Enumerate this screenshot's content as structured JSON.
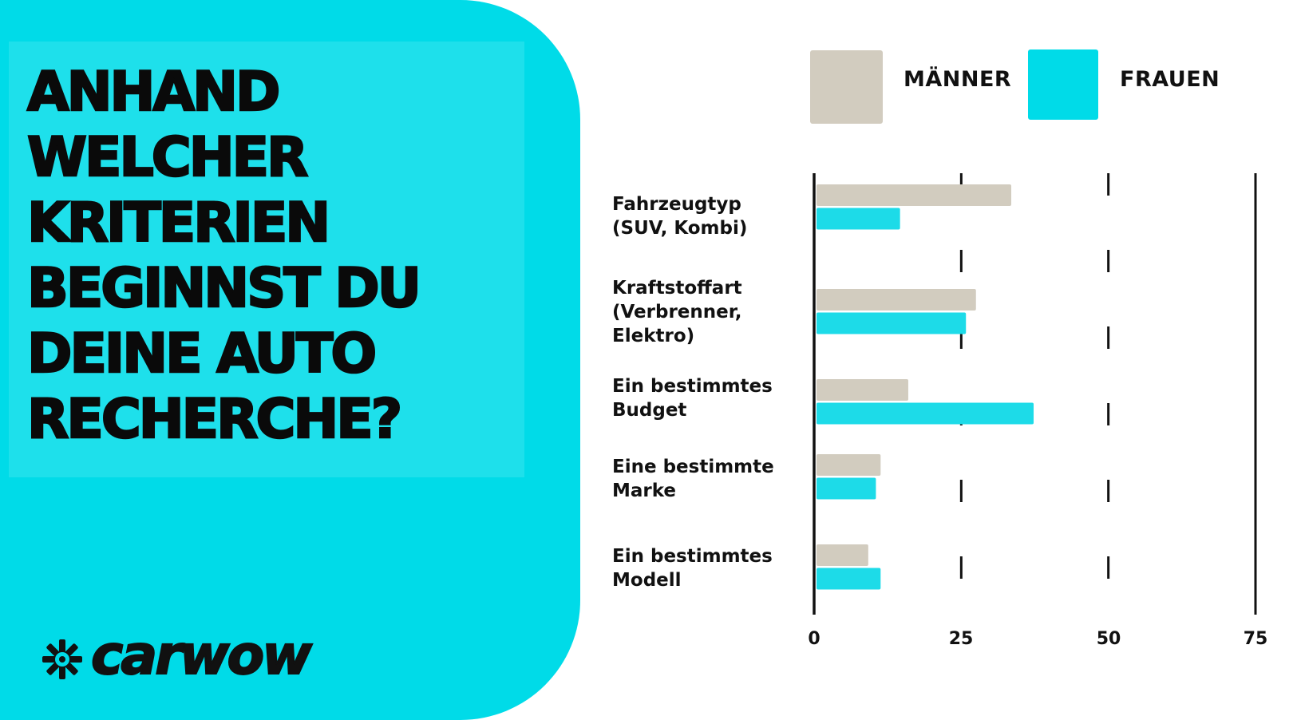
{
  "title_lines": [
    "ANHAND",
    "WELCHER",
    "KRITERIEN",
    "BEGINNST DU",
    "DEINE AUTO",
    "RECHERCHE?"
  ],
  "logo_text": "carwow",
  "colors": {
    "accent": "#00dbe8",
    "maenner": "#d2ccbf",
    "frauen": "#1ddbe8",
    "text": "#111111"
  },
  "chart_data": {
    "type": "bar",
    "orientation": "horizontal",
    "categories": [
      "Fahrzeugtyp\n(SUV, Kombi)",
      "Kraftstoffart\n(Verbrenner,\nElektro)",
      "Ein bestimmtes\nBudget",
      "Eine bestimmte\nMarke",
      "Ein bestimmtes\nModell"
    ],
    "series": [
      {
        "name": "MÄNNER",
        "values": [
          33.5,
          27.5,
          16,
          11.3,
          9.2
        ]
      },
      {
        "name": "FRAUEN",
        "values": [
          14.6,
          25.8,
          37.3,
          10.5,
          11.3
        ]
      }
    ],
    "xticks": [
      "0",
      "25",
      "50",
      "75"
    ],
    "xlim": [
      0,
      75
    ],
    "grid": "dashed-vertical",
    "legend_position": "top"
  }
}
